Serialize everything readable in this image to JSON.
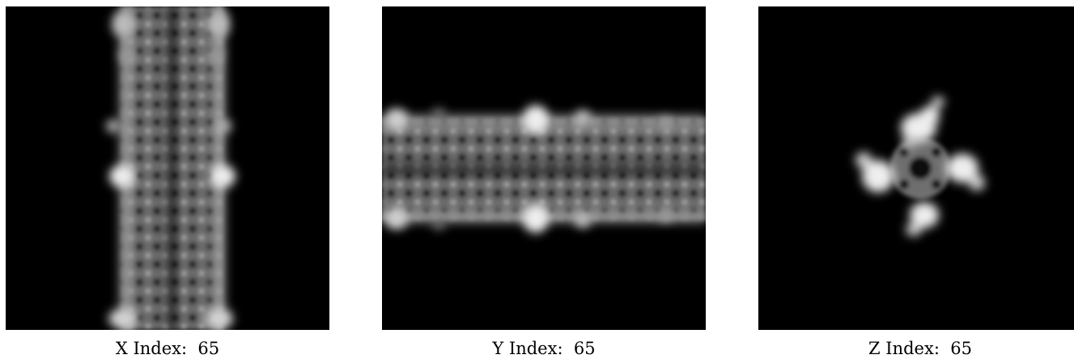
{
  "colors": {
    "background": "#000000",
    "foreground": "#ffffff",
    "caption_text": "#000000"
  },
  "panels": [
    {
      "id": "x",
      "caption": "X Index:  65",
      "index": 65,
      "axis": "X"
    },
    {
      "id": "y",
      "caption": "Y Index:  65",
      "index": 65,
      "axis": "Y"
    },
    {
      "id": "z",
      "caption": "Z Index:  65",
      "index": 65,
      "axis": "Z"
    }
  ]
}
